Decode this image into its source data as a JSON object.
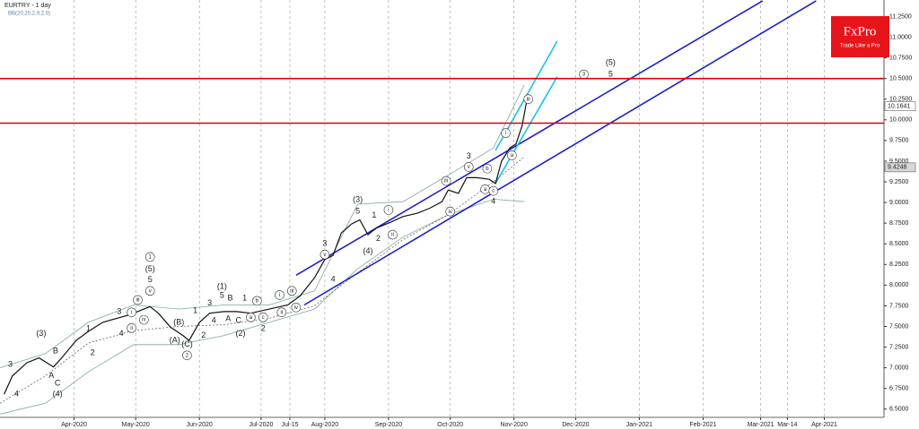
{
  "chart_data": {
    "type": "line",
    "title": "EURTRY - 1 day",
    "subtitle": "BB(20,20,2,0,2,0)",
    "logo": {
      "name": "FxPro",
      "tagline": "Trade Like a Pro"
    },
    "x": [
      57,
      61,
      68,
      74,
      81,
      85,
      92,
      98,
      105,
      112,
      118,
      125,
      128,
      132,
      138,
      144,
      147,
      152,
      157,
      164,
      170,
      177,
      186,
      195,
      201,
      208,
      213,
      217,
      221,
      226,
      230,
      234,
      238,
      245,
      251,
      258,
      264,
      270,
      273,
      278,
      282,
      287,
      293,
      296,
      299,
      303,
      306,
      309,
      311
    ],
    "series": [
      {
        "color": "#111111",
        "values": [
          6.68,
          6.9,
          7.06,
          7.12,
          7.01,
          7.12,
          7.33,
          7.44,
          7.55,
          7.6,
          7.64,
          7.71,
          7.74,
          7.66,
          7.49,
          7.39,
          7.33,
          7.55,
          7.66,
          7.68,
          7.68,
          7.66,
          7.71,
          7.76,
          7.87,
          8.09,
          8.31,
          8.36,
          8.63,
          8.74,
          8.79,
          8.61,
          8.69,
          8.76,
          8.83,
          8.87,
          8.93,
          9.01,
          9.15,
          9.11,
          9.3,
          9.3,
          9.28,
          9.23,
          9.5,
          9.66,
          9.71,
          9.93,
          10.2
        ]
      }
    ],
    "bands": {
      "x": [
        55,
        77,
        98,
        120,
        142,
        164,
        186,
        208,
        229,
        251,
        273,
        295,
        310
      ],
      "upper": [
        7.0,
        7.17,
        7.55,
        7.76,
        7.71,
        7.76,
        7.76,
        7.93,
        8.98,
        9.01,
        9.33,
        9.66,
        10.42
      ],
      "middle": [
        6.57,
        6.9,
        7.3,
        7.45,
        7.5,
        7.52,
        7.6,
        7.75,
        8.15,
        8.55,
        8.85,
        9.25,
        9.55
      ],
      "lower": [
        6.44,
        6.57,
        6.95,
        7.28,
        7.28,
        7.39,
        7.55,
        7.71,
        8.2,
        8.58,
        8.85,
        9.04,
        9.01
      ],
      "color": "#7fa89a"
    },
    "levels": [
      10.5,
      9.96
    ],
    "level_color": "#e00000",
    "channels": [
      {
        "x": [
          199,
          426
        ],
        "y": [
          8.12,
          11.44
        ]
      },
      {
        "x": [
          203,
          452
        ],
        "y": [
          7.76,
          11.44
        ]
      }
    ],
    "channel_color": "#1f1fd0",
    "fast_channels": [
      {
        "x": [
          296,
          326
        ],
        "y": [
          9.63,
          10.95
        ]
      },
      {
        "x": [
          296,
          326
        ],
        "y": [
          9.23,
          10.52
        ]
      }
    ],
    "fast_channel_color": "#17c3e6",
    "price_labels": [
      10.1641,
      9.4248
    ],
    "annotations": [
      {
        "text": "3",
        "x": 60,
        "y": 7.04
      },
      {
        "text": "4",
        "x": 63,
        "y": 6.68
      },
      {
        "text": "(3)",
        "x": 75,
        "y": 7.41
      },
      {
        "text": "B",
        "x": 82,
        "y": 7.2
      },
      {
        "text": "A",
        "x": 80,
        "y": 6.9
      },
      {
        "text": "C",
        "x": 83,
        "y": 6.81
      },
      {
        "text": "(4)",
        "x": 83,
        "y": 6.68
      },
      {
        "text": "2",
        "x": 100,
        "y": 7.18
      },
      {
        "text": "1",
        "x": 98,
        "y": 7.47
      },
      {
        "text": "3",
        "x": 113,
        "y": 7.68
      },
      {
        "text": "4",
        "x": 114,
        "y": 7.41
      },
      {
        "text": "i",
        "x": 119,
        "y": 7.67,
        "circled": true
      },
      {
        "text": "ii",
        "x": 119,
        "y": 7.48,
        "circled": true
      },
      {
        "text": "iii",
        "x": 122,
        "y": 7.82,
        "circled": true
      },
      {
        "text": "iv",
        "x": 125,
        "y": 7.58,
        "circled": true
      },
      {
        "text": "v",
        "x": 128,
        "y": 7.93,
        "circled": true
      },
      {
        "text": "1",
        "x": 128,
        "y": 8.34,
        "circled": true
      },
      {
        "text": "(5)",
        "x": 128,
        "y": 8.19
      },
      {
        "text": "5",
        "x": 128,
        "y": 8.06
      },
      {
        "text": "(B)",
        "x": 142,
        "y": 7.55
      },
      {
        "text": "(A)",
        "x": 140,
        "y": 7.33
      },
      {
        "text": "(C)",
        "x": 146,
        "y": 7.28
      },
      {
        "text": "2",
        "x": 146,
        "y": 7.15,
        "circled": true
      },
      {
        "text": "1",
        "x": 150,
        "y": 7.69
      },
      {
        "text": "2",
        "x": 154,
        "y": 7.39
      },
      {
        "text": "3",
        "x": 157,
        "y": 7.78
      },
      {
        "text": "4",
        "x": 159,
        "y": 7.57
      },
      {
        "text": "5",
        "x": 163,
        "y": 7.87
      },
      {
        "text": "(1)",
        "x": 163,
        "y": 7.98
      },
      {
        "text": "B",
        "x": 167,
        "y": 7.84
      },
      {
        "text": "A",
        "x": 166,
        "y": 7.59
      },
      {
        "text": "C",
        "x": 171,
        "y": 7.57
      },
      {
        "text": "1",
        "x": 174,
        "y": 7.84
      },
      {
        "text": "(2)",
        "x": 172,
        "y": 7.41
      },
      {
        "text": "a",
        "x": 177,
        "y": 7.61,
        "circled": true
      },
      {
        "text": "b",
        "x": 180,
        "y": 7.81,
        "circled": true
      },
      {
        "text": "c",
        "x": 183,
        "y": 7.61,
        "circled": true
      },
      {
        "text": "2",
        "x": 183,
        "y": 7.47
      },
      {
        "text": "i",
        "x": 191,
        "y": 7.88,
        "circled": true
      },
      {
        "text": "ii",
        "x": 192,
        "y": 7.67,
        "circled": true
      },
      {
        "text": "iii",
        "x": 197,
        "y": 7.93,
        "circled": true
      },
      {
        "text": "iv",
        "x": 199,
        "y": 7.73,
        "circled": true
      },
      {
        "text": "3",
        "x": 213,
        "y": 8.5
      },
      {
        "text": "v",
        "x": 213,
        "y": 8.37,
        "circled": true
      },
      {
        "text": "4",
        "x": 217,
        "y": 8.07
      },
      {
        "text": "(3)",
        "x": 229,
        "y": 9.03
      },
      {
        "text": "5",
        "x": 229,
        "y": 8.89
      },
      {
        "text": "1",
        "x": 237,
        "y": 8.84
      },
      {
        "text": "2",
        "x": 239,
        "y": 8.56
      },
      {
        "text": "(4)",
        "x": 234,
        "y": 8.41
      },
      {
        "text": "i",
        "x": 244,
        "y": 8.91,
        "circled": true
      },
      {
        "text": "ii",
        "x": 246,
        "y": 8.61,
        "circled": true
      },
      {
        "text": "3",
        "x": 283,
        "y": 9.56
      },
      {
        "text": "v",
        "x": 283,
        "y": 9.43,
        "circled": true
      },
      {
        "text": "iii",
        "x": 272,
        "y": 9.26,
        "circled": true
      },
      {
        "text": "iv",
        "x": 274,
        "y": 8.89,
        "circled": true
      },
      {
        "text": "b",
        "x": 292,
        "y": 9.41,
        "circled": true
      },
      {
        "text": "a",
        "x": 291,
        "y": 9.16,
        "circled": true
      },
      {
        "text": "c",
        "x": 295,
        "y": 9.14,
        "circled": true
      },
      {
        "text": "4",
        "x": 295,
        "y": 9.01
      },
      {
        "text": "i",
        "x": 301,
        "y": 9.84,
        "circled": true
      },
      {
        "text": "a",
        "x": 304,
        "y": 9.57,
        "circled": true
      },
      {
        "text": "iii",
        "x": 312,
        "y": 10.25,
        "circled": true
      },
      {
        "text": "3",
        "x": 339,
        "y": 10.55,
        "circled": true
      },
      {
        "text": "(5)",
        "x": 352,
        "y": 10.69
      },
      {
        "text": "5",
        "x": 352,
        "y": 10.55
      }
    ],
    "xlim": [
      55,
      485
    ],
    "xticks": [
      {
        "value": 91,
        "label": "Apr-2020"
      },
      {
        "value": 121,
        "label": "May-2020"
      },
      {
        "value": 152,
        "label": "Jun-2020"
      },
      {
        "value": 182,
        "label": "Jul-2020"
      },
      {
        "value": 196,
        "label": "Jul-15"
      },
      {
        "value": 213,
        "label": "Aug-2020"
      },
      {
        "value": 244,
        "label": "Sep-2020"
      },
      {
        "value": 274,
        "label": "Oct-2020"
      },
      {
        "value": 305,
        "label": "Nov-2020"
      },
      {
        "value": 335,
        "label": "Dec-2020"
      },
      {
        "value": 366,
        "label": "Jan-2021"
      },
      {
        "value": 397,
        "label": "Feb-2021"
      },
      {
        "value": 425,
        "label": "Mar-2021"
      },
      {
        "value": 438,
        "label": "Mar-14"
      },
      {
        "value": 456,
        "label": "Apr-2021"
      }
    ],
    "ylim": [
      6.4,
      11.45
    ],
    "yticks": [
      {
        "value": 6.5,
        "label": "6.5000"
      },
      {
        "value": 6.75,
        "label": "6.7500"
      },
      {
        "value": 7,
        "label": "7.0000"
      },
      {
        "value": 7.25,
        "label": "7.2500"
      },
      {
        "value": 7.5,
        "label": "7.5000"
      },
      {
        "value": 7.75,
        "label": "7.7500"
      },
      {
        "value": 8,
        "label": "8.0000"
      },
      {
        "value": 8.25,
        "label": "8.2500"
      },
      {
        "value": 8.5,
        "label": "8.5000"
      },
      {
        "value": 8.75,
        "label": "8.7500"
      },
      {
        "value": 9,
        "label": "9.0000"
      },
      {
        "value": 9.25,
        "label": "9.2500"
      },
      {
        "value": 9.5,
        "label": "9.5000"
      },
      {
        "value": 9.75,
        "label": "9.7500"
      },
      {
        "value": 10,
        "label": "10.0000"
      },
      {
        "value": 10.25,
        "label": "10.2500"
      },
      {
        "value": 10.5,
        "label": "10.5000"
      },
      {
        "value": 10.75,
        "label": "10.7500"
      },
      {
        "value": 11,
        "label": "11.0000"
      },
      {
        "value": 11.25,
        "label": "11.2500"
      }
    ],
    "grid": "x"
  }
}
